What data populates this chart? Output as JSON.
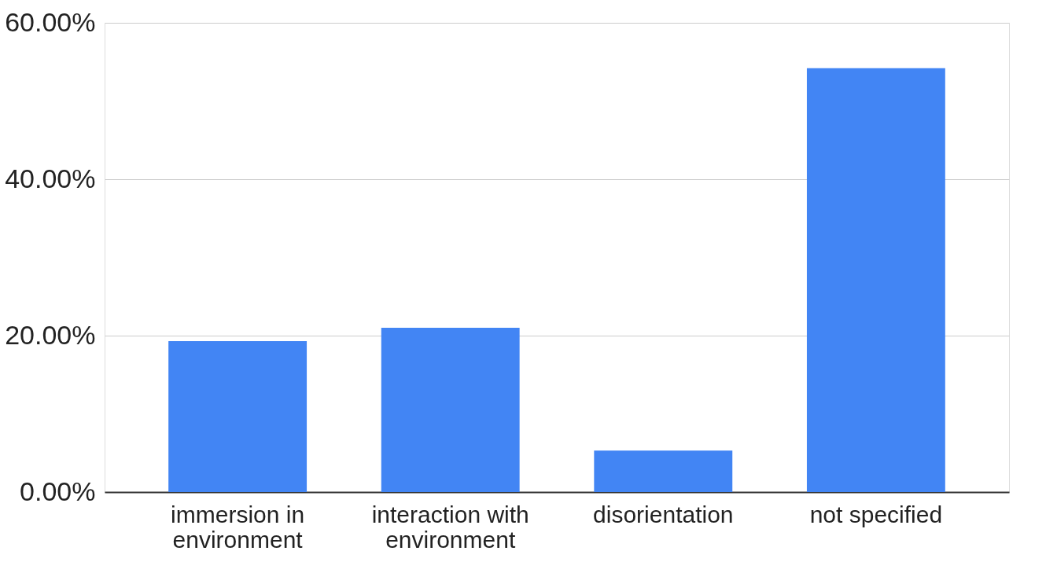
{
  "chart_data": {
    "type": "bar",
    "categories": [
      "immersion in\nenvironment",
      "interaction with\nenvironment",
      "disorientation",
      "not specified"
    ],
    "values": [
      19.3,
      21.0,
      5.3,
      54.2
    ],
    "color": "#4285f4",
    "ylim": [
      0,
      60
    ],
    "yticks": [
      {
        "value": 0,
        "label": "0.00%"
      },
      {
        "value": 20,
        "label": "20.00%"
      },
      {
        "value": 40,
        "label": "40.00%"
      },
      {
        "value": 60,
        "label": "60.00%"
      }
    ],
    "grid": "y"
  }
}
